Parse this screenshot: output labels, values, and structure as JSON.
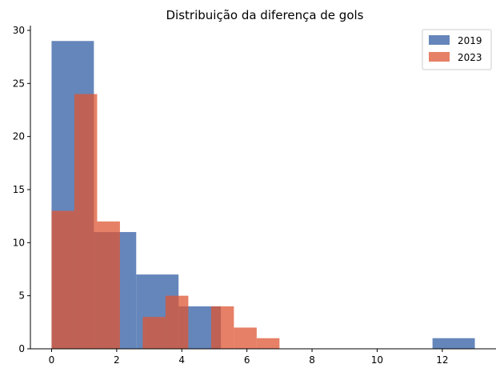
{
  "chart_data": {
    "type": "bar",
    "title": "Distribuição da diferença de gols",
    "xlabel": "",
    "ylabel": "",
    "xlim": [
      -0.65,
      13.65
    ],
    "ylim": [
      0,
      30.45
    ],
    "x_ticks": [
      "0",
      "2",
      "4",
      "6",
      "8",
      "10",
      "12"
    ],
    "x_tick_values": [
      0,
      2,
      4,
      6,
      8,
      10,
      12
    ],
    "y_ticks": [
      "0",
      "5",
      "10",
      "15",
      "20",
      "25",
      "30"
    ],
    "y_tick_values": [
      0,
      5,
      10,
      15,
      20,
      25,
      30
    ],
    "grid": false,
    "legend_position": "top-right",
    "series": [
      {
        "name": "2019",
        "color": "#4c72b0",
        "bin_edges": [
          0,
          1.3,
          2.6,
          3.9,
          5.2,
          6.5,
          7.8,
          9.1,
          10.4,
          11.7,
          13.0
        ],
        "counts": [
          29,
          11,
          7,
          4,
          0,
          0,
          0,
          0,
          0,
          1
        ]
      },
      {
        "name": "2023",
        "color": "#dd5533",
        "bin_edges": [
          0,
          0.7,
          1.4,
          2.1,
          2.8,
          3.5,
          4.2,
          4.9,
          5.6,
          6.3,
          7.0
        ],
        "counts": [
          13,
          24,
          12,
          0,
          3,
          5,
          0,
          4,
          2,
          1
        ]
      }
    ]
  }
}
